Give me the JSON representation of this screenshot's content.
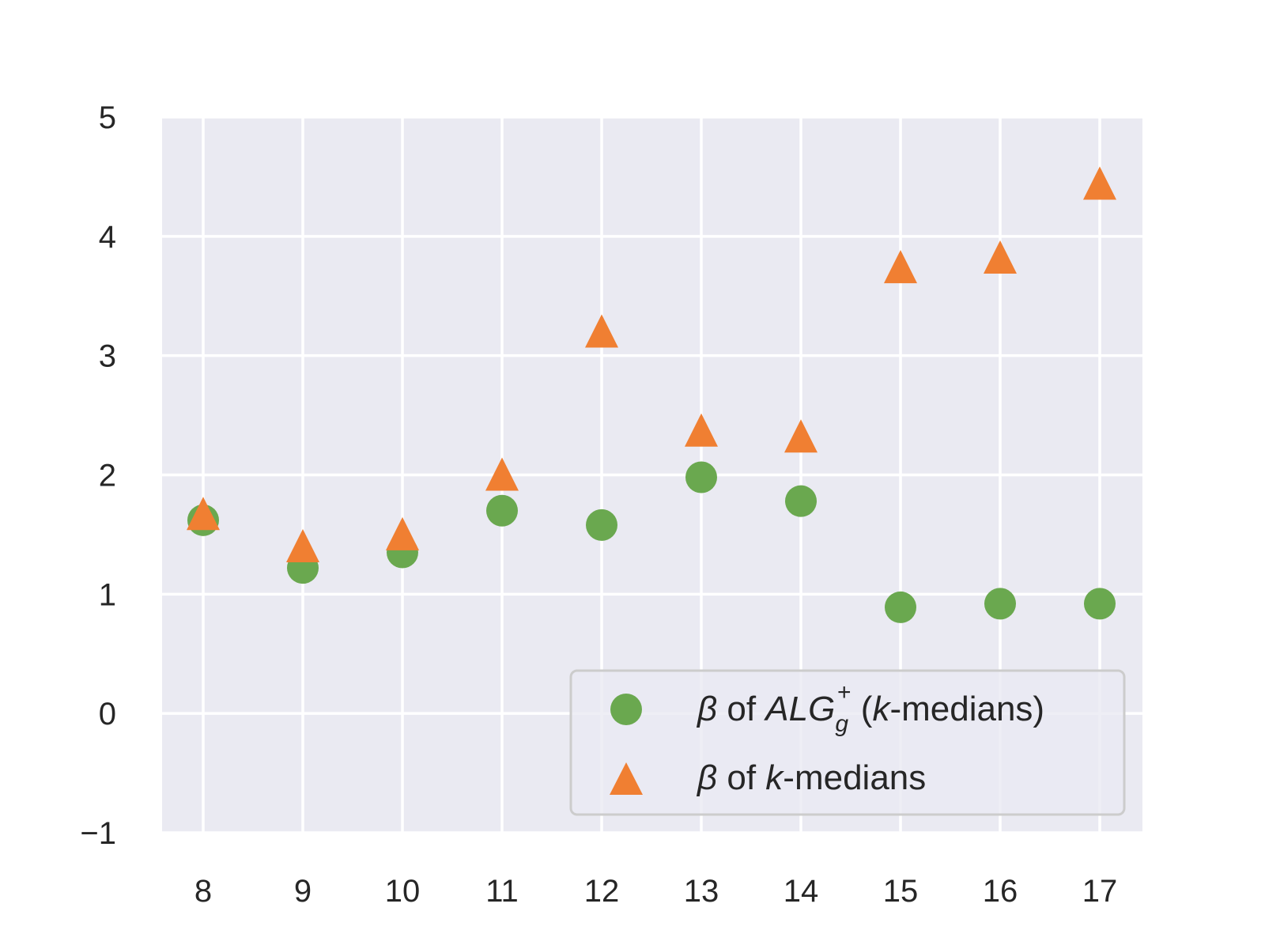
{
  "chart_data": {
    "type": "scatter",
    "x": [
      8,
      9,
      10,
      11,
      12,
      13,
      14,
      15,
      16,
      17
    ],
    "xticks": [
      "8",
      "9",
      "10",
      "11",
      "12",
      "13",
      "14",
      "15",
      "16",
      "17"
    ],
    "yticks": [
      "−1",
      "0",
      "1",
      "2",
      "3",
      "4",
      "5"
    ],
    "ylim": [
      -1,
      5
    ],
    "xlabel": "",
    "ylabel": "",
    "title": "",
    "grid": true,
    "legend_position": "bottom-right",
    "background_color": "#eaeaf2",
    "series": [
      {
        "legend_label": {
          "beta": "β",
          "of": " of ",
          "alg": "ALG",
          "sub": "g",
          "sup": "+",
          "open": " (",
          "k": "k",
          "rest": "-medians)"
        },
        "marker": "circle",
        "color": "#6aa84f",
        "values": [
          1.62,
          1.22,
          1.35,
          1.7,
          1.58,
          1.98,
          1.78,
          0.89,
          0.92,
          0.92
        ]
      },
      {
        "legend_label": {
          "beta": "β",
          "of": " of ",
          "k": "k",
          "rest": "-medians"
        },
        "marker": "triangle",
        "color": "#f07f32",
        "values": [
          1.65,
          1.38,
          1.48,
          1.98,
          3.18,
          2.35,
          2.3,
          3.72,
          3.8,
          4.42
        ]
      }
    ]
  }
}
